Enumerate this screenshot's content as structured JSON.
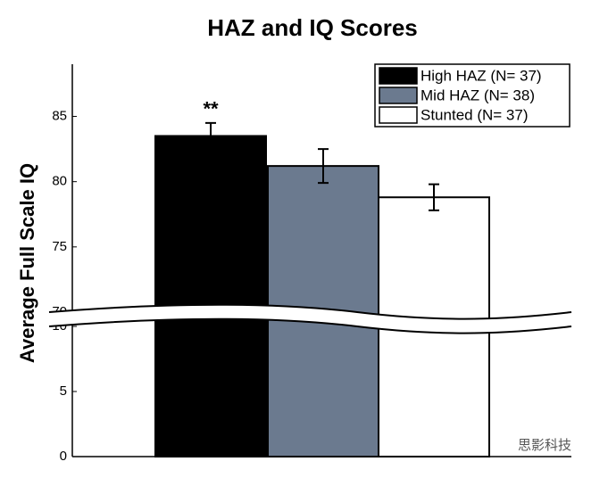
{
  "chart_data": {
    "type": "bar",
    "title": "HAZ and IQ Scores",
    "y_label": "Average Full Scale IQ",
    "categories": [
      "High HAZ",
      "Mid HAZ",
      "Stunted"
    ],
    "series": [
      {
        "name": "High HAZ (N= 37)",
        "color": "#000000",
        "values": [
          83.5,
          null,
          null
        ],
        "errors": [
          1.0,
          null,
          null
        ]
      },
      {
        "name": "Mid HAZ (N= 38)",
        "color": "#6b7a8f",
        "values": [
          null,
          81.2,
          null
        ],
        "errors": [
          null,
          1.3,
          null
        ]
      },
      {
        "name": "Stunted (N= 37)",
        "color": "#ffffff",
        "values": [
          null,
          null,
          78.8
        ],
        "errors": [
          null,
          null,
          1.0
        ]
      }
    ],
    "annotation": "**",
    "y_segments": [
      {
        "ylim": [
          0,
          10
        ],
        "yticks": [
          0,
          5,
          10
        ]
      },
      {
        "ylim": [
          70,
          89
        ],
        "yticks": [
          70,
          75,
          80,
          85
        ]
      }
    ],
    "legend": "upper right",
    "watermark": "思影科技"
  }
}
